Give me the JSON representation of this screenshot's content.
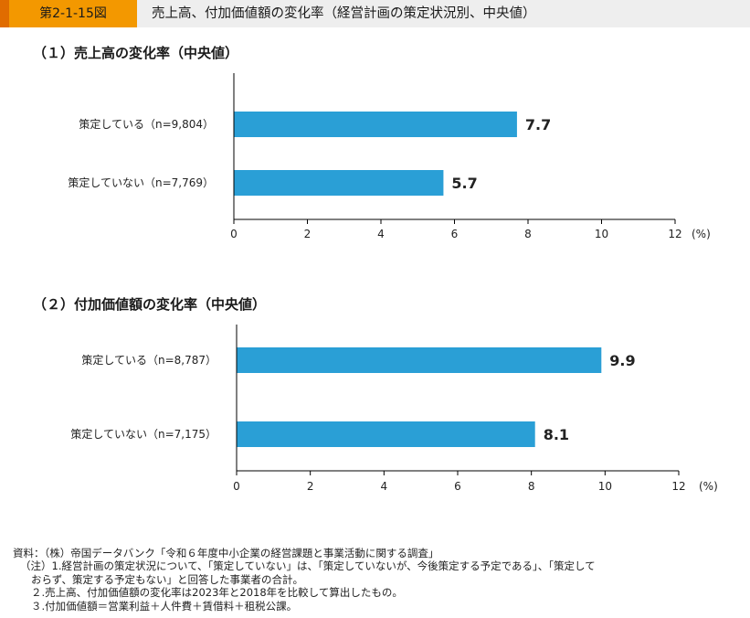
{
  "header": {
    "figure_number": "第2-1-15図",
    "title": "売上高、付加価値額の変化率（経営計画の策定状況別、中央値）"
  },
  "chart_data": [
    {
      "type": "bar",
      "orientation": "horizontal",
      "title": "（１）売上高の変化率（中央値）",
      "categories": [
        "策定している（n=9,804）",
        "策定していない（n=7,769）"
      ],
      "values": [
        7.7,
        5.7
      ],
      "value_labels": [
        "7.7",
        "5.7"
      ],
      "xlim": [
        0,
        12
      ],
      "xticks": [
        "0",
        "2",
        "4",
        "6",
        "8",
        "10",
        "12"
      ],
      "unit": "(%)",
      "color": "#2a9fd6",
      "grid": false
    },
    {
      "type": "bar",
      "orientation": "horizontal",
      "title": "（２）付加価値額の変化率（中央値）",
      "categories": [
        "策定している（n=8,787）",
        "策定していない（n=7,175）"
      ],
      "values": [
        9.9,
        8.1
      ],
      "value_labels": [
        "9.9",
        "8.1"
      ],
      "xlim": [
        0,
        12
      ],
      "xticks": [
        "0",
        "2",
        "4",
        "6",
        "8",
        "10",
        "12"
      ],
      "unit": "(%)",
      "color": "#2a9fd6",
      "grid": false
    }
  ],
  "notes": [
    "資料：（株）帝国データバンク「令和６年度中小企業の経営課題と事業活動に関する調査」",
    "（注）1.経営計画の策定状況について、「策定していない」は、「策定していないが、今後策定する予定である」、「策定して",
    "おらず、策定する予定もない」と回答した事業者の合計。",
    "２.売上高、付加価値額の変化率は2023年と2018年を比較して算出したもの。",
    "３.付加価値額＝営業利益＋人件費＋賃借料＋租税公課。"
  ]
}
